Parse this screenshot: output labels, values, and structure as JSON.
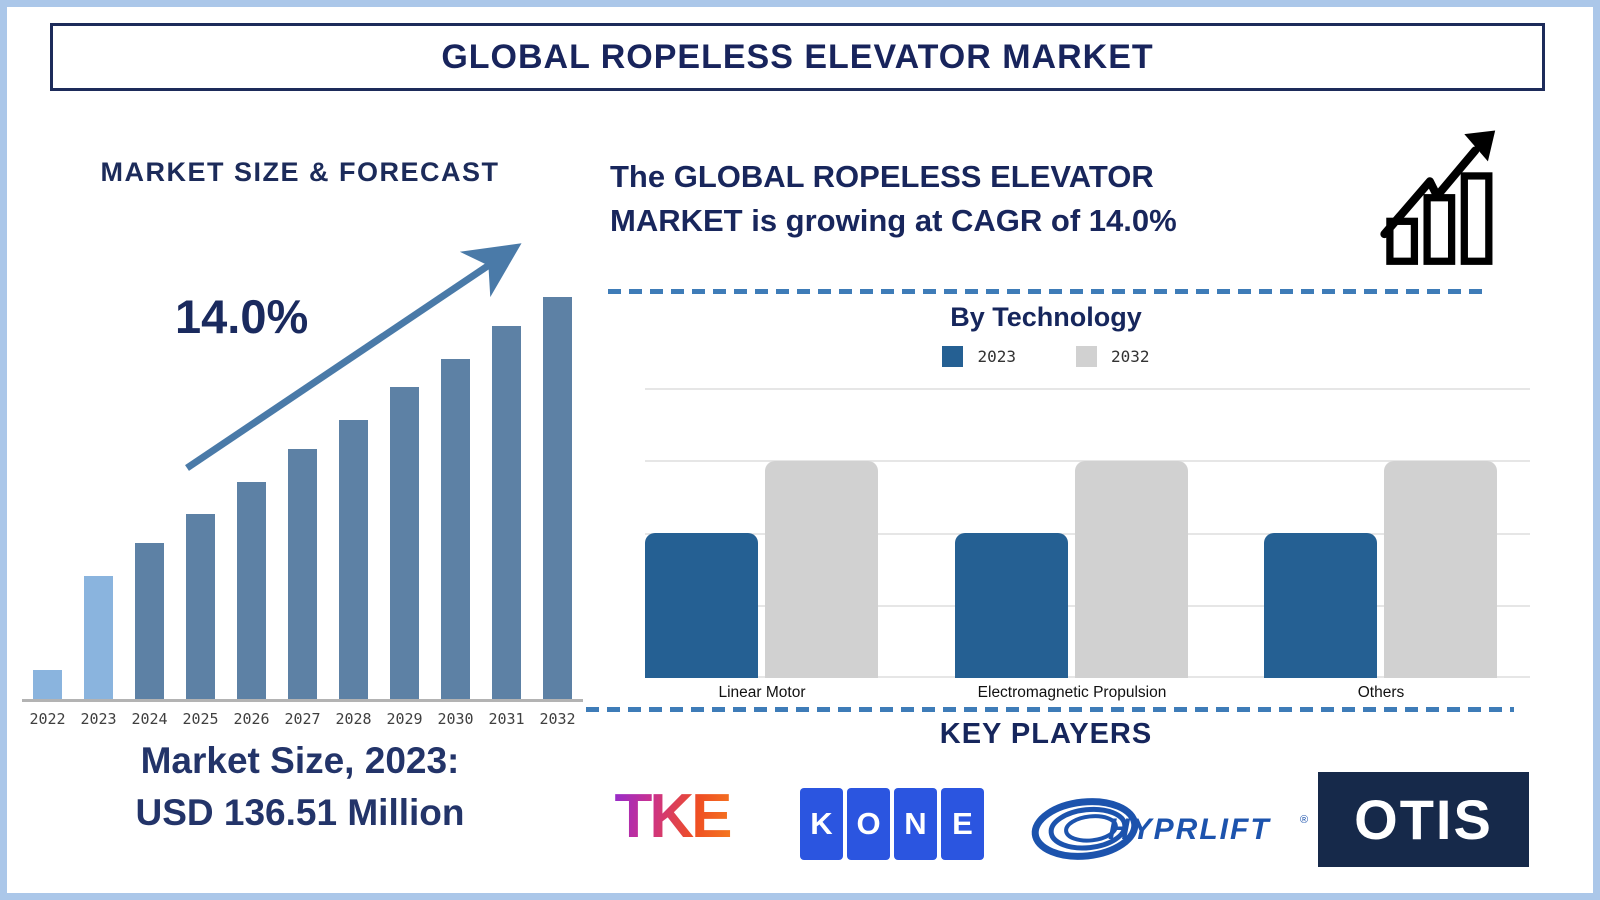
{
  "title": "GLOBAL ROPELESS ELEVATOR MARKET",
  "left_panel": {
    "heading": "MARKET SIZE & FORECAST",
    "growth_label": "14.0%",
    "market_size_caption_line1": "Market Size, 2023:",
    "market_size_caption_line2": "USD 136.51 Million"
  },
  "right_panel": {
    "growth_statement_line1": "The GLOBAL ROPELESS ELEVATOR",
    "growth_statement_line2": "MARKET is growing at CAGR of 14.0%",
    "technology_heading": "By Technology",
    "key_players_heading": "KEY PLAYERS",
    "logos": {
      "tke": "TKE",
      "kone_letters": [
        "K",
        "O",
        "N",
        "E"
      ],
      "hyprlift": "HYPRLIFT",
      "hyprlift_reg": "®",
      "otis": "OTIS"
    }
  },
  "chart_data": [
    {
      "id": "market_size_forecast",
      "type": "bar",
      "title": "MARKET SIZE & FORECAST",
      "categories": [
        "2022",
        "2023",
        "2024",
        "2025",
        "2026",
        "2027",
        "2028",
        "2029",
        "2030",
        "2031",
        "2032"
      ],
      "values_relative": [
        0.07,
        0.3,
        0.38,
        0.45,
        0.53,
        0.61,
        0.68,
        0.76,
        0.83,
        0.91,
        0.98
      ],
      "value_axis": "unlabeled (relative bar heights only)",
      "annotation": "14.0% CAGR trend arrow",
      "known_point": {
        "year": "2023",
        "value_usd_million": 136.51
      },
      "highlight_years": [
        "2022",
        "2023"
      ],
      "bar_color_highlight": "#8ab4de",
      "bar_color_default": "#5d81a5"
    },
    {
      "id": "by_technology",
      "type": "grouped-bar",
      "title": "By Technology",
      "categories": [
        "Linear Motor",
        "Electromagnetic Propulsion",
        "Others"
      ],
      "series": [
        {
          "name": "2023",
          "color": "#256093",
          "values": [
            2,
            2,
            2
          ]
        },
        {
          "name": "2032",
          "color": "#d1d1d1",
          "values": [
            3,
            3,
            3
          ]
        }
      ],
      "ylim": [
        0,
        4
      ],
      "gridlines": true,
      "legend_position": "top",
      "value_axis": "unlabeled (gridline units)"
    }
  ],
  "colors": {
    "navy_text": "#18245c",
    "frame": "#abc7e9",
    "dashed_line": "#3e7cb8",
    "trend_arrow": "#4a7aa8",
    "axis": "#b3b3b3",
    "gridline": "#e6e6e6",
    "kone_blue": "#2b55e0",
    "hyprlift_blue": "#1c53ad",
    "otis_navy": "#16294a",
    "tke_gradient_start": "#7d2ae8",
    "tke_gradient_end": "#f78b1e"
  }
}
